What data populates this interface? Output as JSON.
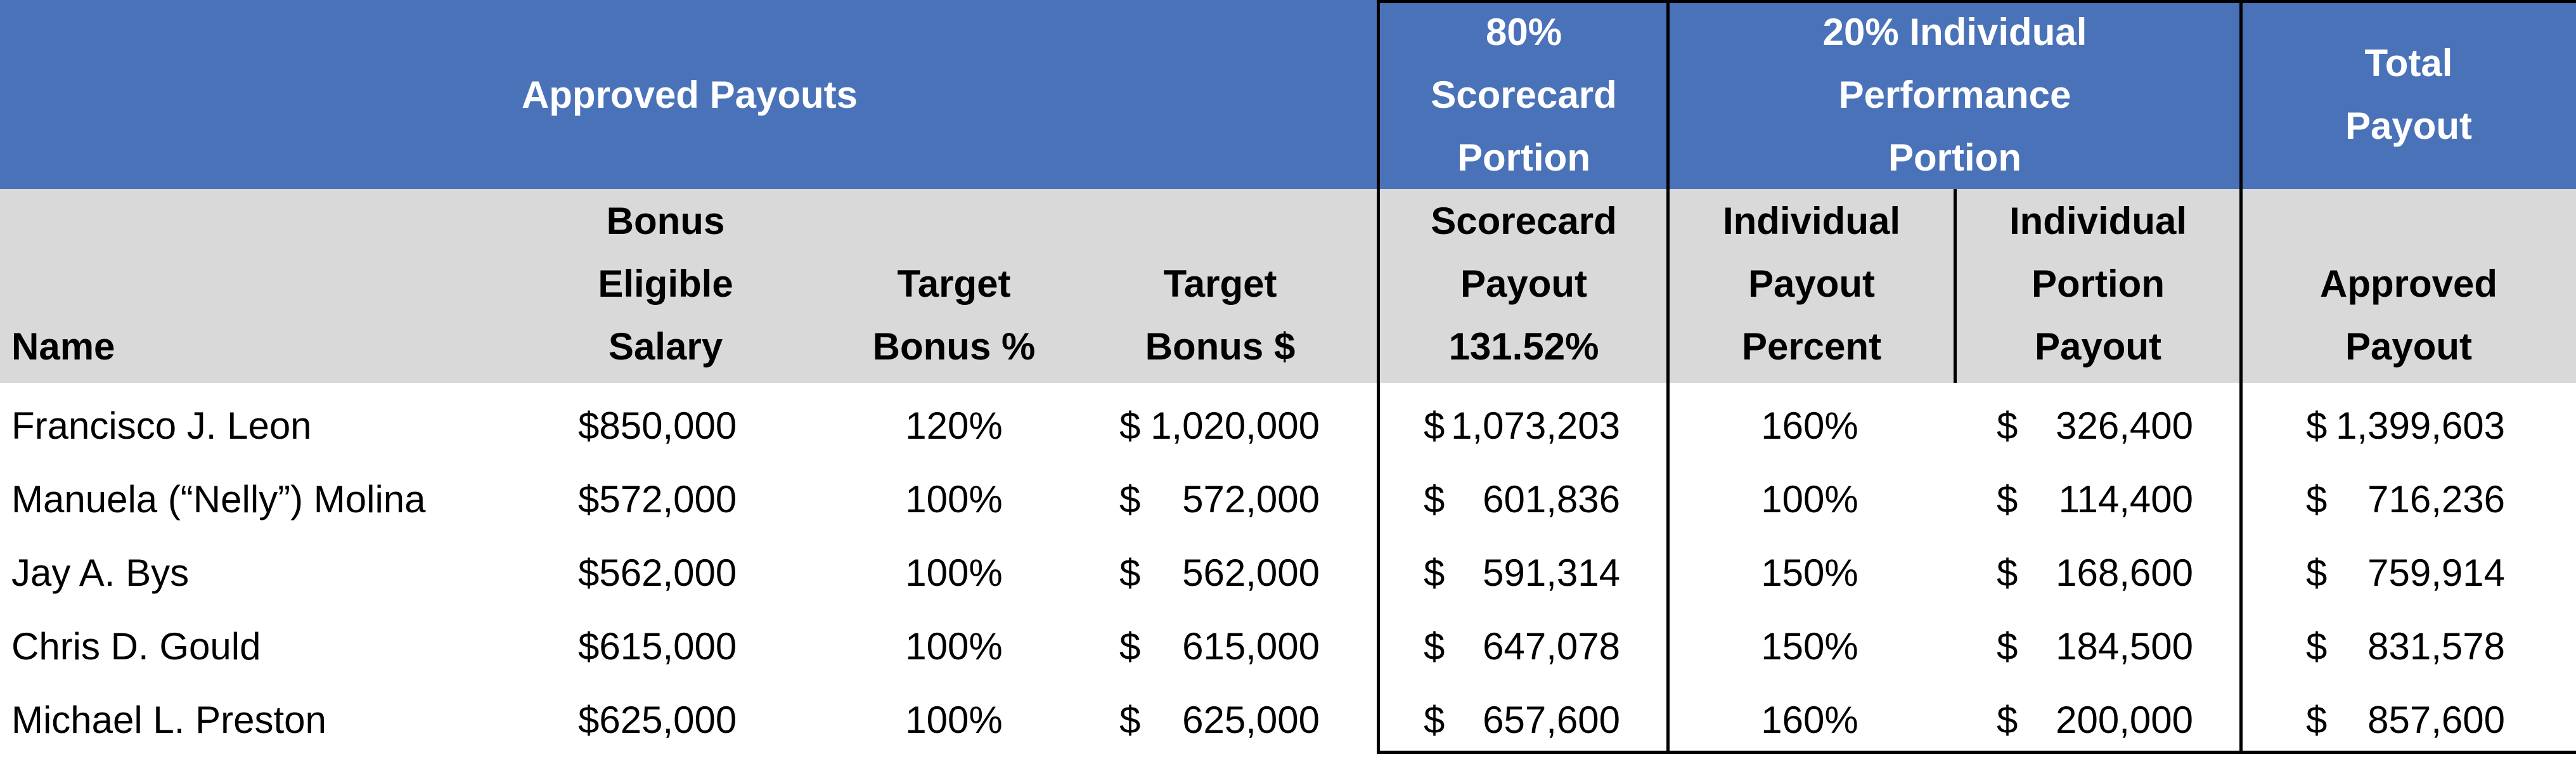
{
  "header_top": {
    "approved_payouts": "Approved Payouts",
    "scorecard_portion": "80%\nScorecard\nPortion",
    "individual_portion": "20% Individual\nPerformance\nPortion",
    "total_payout": "Total\nPayout"
  },
  "header_sub": {
    "name": "Name",
    "bonus_eligible_salary": "Bonus\nEligible\nSalary",
    "target_bonus_pct": "Target\nBonus %",
    "target_bonus_amt": "Target\nBonus $",
    "scorecard_payout": "Scorecard\nPayout\n131.52%",
    "individual_payout_pct": "Individual\nPayout\nPercent",
    "individual_portion_payout": "Individual\nPortion\nPayout",
    "approved_payout": "Approved\nPayout"
  },
  "currency": "$",
  "rows": [
    {
      "name": "Francisco J. Leon",
      "salary": "850,000",
      "target_pct": "120%",
      "target_amt": "1,020,000",
      "scorecard": "1,073,203",
      "ind_pct": "160%",
      "ind_payout": "326,400",
      "total": "1,399,603"
    },
    {
      "name": "Manuela (“Nelly”) Molina",
      "salary": "572,000",
      "target_pct": "100%",
      "target_amt": "572,000",
      "scorecard": "601,836",
      "ind_pct": "100%",
      "ind_payout": "114,400",
      "total": "716,236"
    },
    {
      "name": "Jay A. Bys",
      "salary": "562,000",
      "target_pct": "100%",
      "target_amt": "562,000",
      "scorecard": "591,314",
      "ind_pct": "150%",
      "ind_payout": "168,600",
      "total": "759,914"
    },
    {
      "name": "Chris D. Gould",
      "salary": "615,000",
      "target_pct": "100%",
      "target_amt": "615,000",
      "scorecard": "647,078",
      "ind_pct": "150%",
      "ind_payout": "184,500",
      "total": "831,578"
    },
    {
      "name": "Michael L. Preston",
      "salary": "625,000",
      "target_pct": "100%",
      "target_amt": "625,000",
      "scorecard": "657,600",
      "ind_pct": "160%",
      "ind_payout": "200,000",
      "total": "857,600"
    }
  ]
}
